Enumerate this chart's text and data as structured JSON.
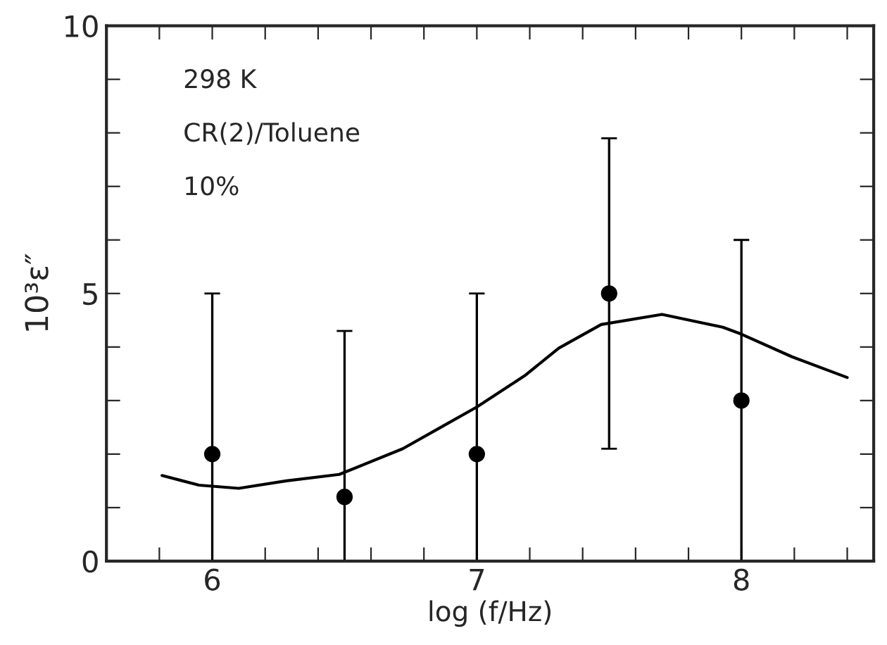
{
  "chart_data": {
    "type": "scatter",
    "xlabel": "log (f/Hz)",
    "ylabel": "10³ε″",
    "series": [
      {
        "marker": "circle",
        "color": "#000000",
        "x": [
          6,
          6.5,
          7,
          7.5,
          8
        ],
        "values": [
          2.0,
          1.2,
          2.0,
          5.0,
          3.0
        ],
        "errors": [
          [
            0,
            5.0
          ],
          [
            0,
            4.3
          ],
          [
            0,
            5.0
          ],
          [
            2.1,
            7.9
          ],
          [
            0,
            6.0
          ]
        ]
      },
      {
        "type": "line",
        "marker": "none",
        "color": "#000000",
        "x": [
          5.81,
          5.95,
          6.1,
          6.28,
          6.48,
          6.72,
          6.86,
          7.0,
          7.18,
          7.31,
          7.47,
          7.7,
          7.93,
          8.0,
          8.19,
          8.4
        ],
        "values": [
          1.6,
          1.42,
          1.36,
          1.5,
          1.62,
          2.1,
          2.49,
          2.88,
          3.46,
          3.98,
          4.42,
          4.61,
          4.37,
          4.24,
          3.82,
          3.43
        ]
      }
    ],
    "xlim": [
      5.6,
      8.5
    ],
    "ylim": [
      0,
      10
    ],
    "xticks": [
      {
        "value": 5.8,
        "label": null
      },
      6,
      {
        "value": 6.2,
        "label": null
      },
      {
        "value": 6.4,
        "label": null
      },
      {
        "value": 6.6,
        "label": null
      },
      {
        "value": 6.8,
        "label": null
      },
      7,
      {
        "value": 7.2,
        "label": null
      },
      {
        "value": 7.4,
        "label": null
      },
      {
        "value": 7.6,
        "label": null
      },
      {
        "value": 7.8,
        "label": null
      },
      8,
      {
        "value": 8.2,
        "label": null
      },
      {
        "value": 8.4,
        "label": null
      }
    ],
    "yticks": [
      0,
      {
        "value": 1,
        "label": null
      },
      {
        "value": 2,
        "label": null
      },
      {
        "value": 3,
        "label": null
      },
      {
        "value": 4,
        "label": null
      },
      5,
      {
        "value": 6,
        "label": null
      },
      {
        "value": 7,
        "label": null
      },
      {
        "value": 8,
        "label": null
      },
      {
        "value": 9,
        "label": null
      },
      10
    ],
    "annotations": [
      "298 K",
      "CR(2)/Toluene",
      "10%"
    ],
    "grid": false,
    "legend": false
  }
}
